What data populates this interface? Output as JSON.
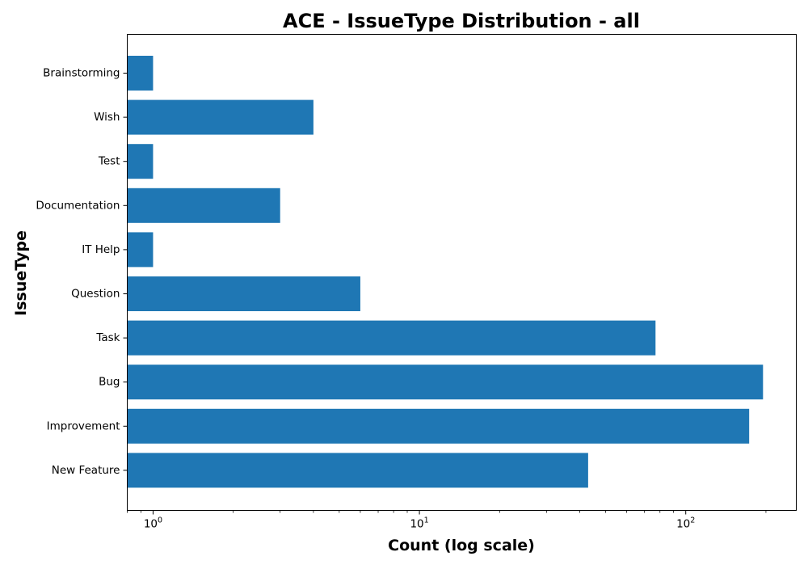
{
  "chart_data": {
    "type": "bar",
    "orientation": "horizontal",
    "title": "ACE - IssueType Distribution - all",
    "xlabel": "Count (log scale)",
    "ylabel": "IssueType",
    "xscale": "log",
    "xlim": [
      0.8,
      260
    ],
    "x_ticks": [
      {
        "value": 1,
        "base": "10",
        "exp": "0"
      },
      {
        "value": 10,
        "base": "10",
        "exp": "1"
      },
      {
        "value": 100,
        "base": "10",
        "exp": "2"
      }
    ],
    "categories": [
      "Brainstorming",
      "Wish",
      "Test",
      "Documentation",
      "IT Help",
      "Question",
      "Task",
      "Bug",
      "Improvement",
      "New Feature"
    ],
    "values": [
      1,
      4,
      1,
      3,
      1,
      6,
      77,
      195,
      173,
      43
    ],
    "bar_color": "#1f77b4",
    "grid": false,
    "legend": false
  }
}
